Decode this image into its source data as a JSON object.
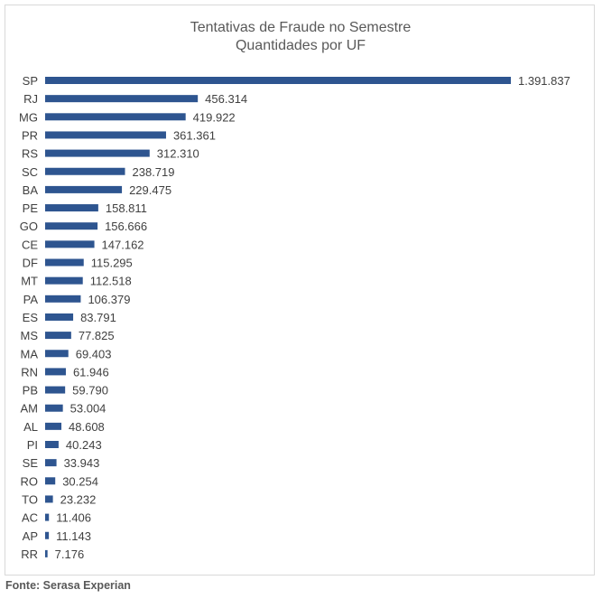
{
  "chart_data": {
    "type": "bar",
    "orientation": "horizontal",
    "title": "Tentativas de Fraude no Semestre",
    "subtitle": "Quantidades por UF",
    "categories": [
      "SP",
      "RJ",
      "MG",
      "PR",
      "RS",
      "SC",
      "BA",
      "PE",
      "GO",
      "CE",
      "DF",
      "MT",
      "PA",
      "ES",
      "MS",
      "MA",
      "RN",
      "PB",
      "AM",
      "AL",
      "PI",
      "SE",
      "RO",
      "TO",
      "AC",
      "AP",
      "RR"
    ],
    "values": [
      1391837,
      456314,
      419922,
      361361,
      312310,
      238719,
      229475,
      158811,
      156666,
      147162,
      115295,
      112518,
      106379,
      83791,
      77825,
      69403,
      61946,
      59790,
      53004,
      48608,
      40243,
      33943,
      30254,
      23232,
      11406,
      11143,
      7176
    ],
    "value_labels": [
      "1.391.837",
      "456.314",
      "419.922",
      "361.361",
      "312.310",
      "238.719",
      "229.475",
      "158.811",
      "156.666",
      "147.162",
      "115.295",
      "112.518",
      "106.379",
      "83.791",
      "77.825",
      "69.403",
      "61.946",
      "59.790",
      "53.004",
      "48.608",
      "40.243",
      "33.943",
      "30.254",
      "23.232",
      "11.406",
      "11.143",
      "7.176"
    ],
    "bar_color": "#2e5590",
    "xlim": [
      0,
      1391837
    ],
    "grid": false,
    "legend": "none"
  },
  "source": "Fonte: Serasa Experian"
}
